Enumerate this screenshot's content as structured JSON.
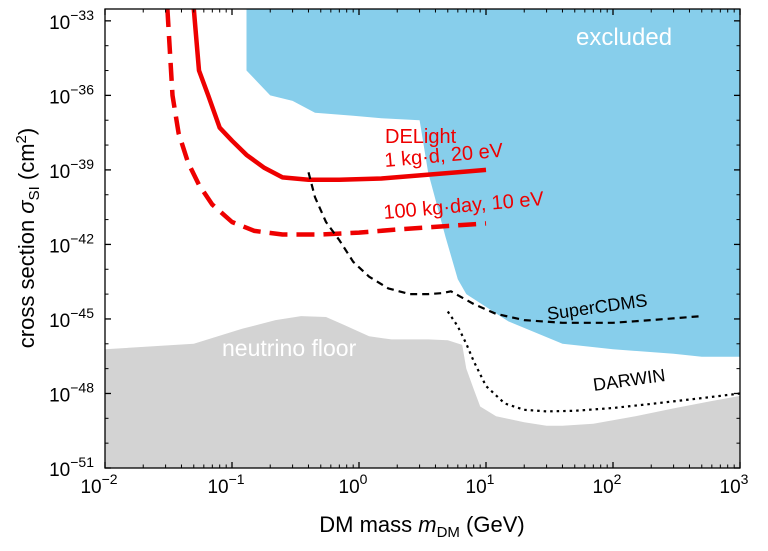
{
  "chart_data": {
    "type": "line",
    "xlabel": {
      "prefix": "DM mass ",
      "symbol": "m",
      "sub": "DM",
      "suffix": " (GeV)"
    },
    "ylabel": {
      "prefix": "cross section ",
      "symbol": "σ",
      "sub": "SI",
      "suffix_open": " (cm",
      "sup": "2",
      "suffix_close": ")"
    },
    "xscale": "log",
    "yscale": "log",
    "xlim": [
      0.01,
      1000
    ],
    "ylim": [
      1e-51,
      3e-33
    ],
    "grid": false,
    "x_ticks": [
      {
        "value": 0.01,
        "base": "10",
        "exp": "−2"
      },
      {
        "value": 0.1,
        "base": "10",
        "exp": "−1"
      },
      {
        "value": 1,
        "base": "10",
        "exp": "0"
      },
      {
        "value": 10,
        "base": "10",
        "exp": "1"
      },
      {
        "value": 100,
        "base": "10",
        "exp": "2"
      },
      {
        "value": 1000,
        "base": "10",
        "exp": "3"
      }
    ],
    "y_ticks": [
      {
        "value": 1e-33,
        "base": "10",
        "exp": "−33"
      },
      {
        "value": 1e-36,
        "base": "10",
        "exp": "−36"
      },
      {
        "value": 1e-39,
        "base": "10",
        "exp": "−39"
      },
      {
        "value": 1e-42,
        "base": "10",
        "exp": "−42"
      },
      {
        "value": 1e-45,
        "base": "10",
        "exp": "−45"
      },
      {
        "value": 1e-48,
        "base": "10",
        "exp": "−48"
      },
      {
        "value": 1e-51,
        "base": "10",
        "exp": "−51"
      }
    ],
    "regions": [
      {
        "name": "excluded",
        "label": "excluded",
        "color": "#87ceeb",
        "x": [
          0.13,
          0.13,
          0.2,
          0.3,
          0.45,
          0.9,
          1.5,
          3,
          3.5,
          4.8,
          6,
          7,
          15,
          40,
          100,
          300,
          500,
          1000,
          1000
        ],
        "y": [
          3e-33,
          1e-35,
          1e-36,
          6e-37,
          2e-37,
          1.5e-37,
          1.2e-37,
          1e-37,
          8e-40,
          2e-42,
          4e-44,
          1e-44,
          8e-46,
          1e-46,
          6e-47,
          4e-47,
          3e-47,
          3e-47,
          3e-33
        ]
      },
      {
        "name": "neutrino-floor",
        "label": "neutrino floor",
        "color": "#d3d3d3",
        "x": [
          0.01,
          0.05,
          0.12,
          0.22,
          0.35,
          0.55,
          0.75,
          1.2,
          1.8,
          3.5,
          5,
          6.5,
          7,
          8,
          9,
          12,
          20,
          30,
          40,
          70,
          150,
          300,
          600,
          1000
        ],
        "y": [
          6e-47,
          1e-46,
          4e-46,
          9e-46,
          1.3e-45,
          1.2e-45,
          6e-46,
          2e-46,
          1.5e-46,
          1.5e-46,
          1.4e-46,
          9e-47,
          1e-47,
          1.5e-48,
          3e-49,
          1.2e-49,
          7e-50,
          5e-50,
          5e-50,
          6e-50,
          1.2e-49,
          2.5e-49,
          5e-49,
          8e-49
        ]
      }
    ],
    "series": [
      {
        "name": "DELight 1 kg·d, 20 eV",
        "style": "solid",
        "color": "#ee0000",
        "x": [
          0.05,
          0.055,
          0.065,
          0.08,
          0.1,
          0.13,
          0.18,
          0.25,
          0.4,
          0.7,
          1.5,
          3,
          6,
          10
        ],
        "y": [
          3e-33,
          1e-35,
          1e-36,
          5e-38,
          1.5e-38,
          4e-39,
          1.2e-39,
          5e-40,
          4e-40,
          4e-40,
          4.5e-40,
          6e-40,
          8e-40,
          1e-39
        ]
      },
      {
        "name": "100 kg·day, 10 eV",
        "style": "dashed",
        "color": "#ee0000",
        "x": [
          0.031,
          0.034,
          0.038,
          0.045,
          0.055,
          0.07,
          0.1,
          0.15,
          0.25,
          0.5,
          1,
          2,
          5,
          10
        ],
        "y": [
          3e-33,
          1e-36,
          3e-38,
          2e-39,
          2.5e-40,
          4e-41,
          8e-42,
          3.5e-42,
          2.5e-42,
          2.5e-42,
          3e-42,
          4e-42,
          5.5e-42,
          7e-42
        ]
      },
      {
        "name": "SuperCDMS",
        "style": "dashed",
        "color": "#000000",
        "x": [
          0.4,
          0.45,
          0.55,
          0.7,
          0.9,
          1.2,
          1.7,
          2.5,
          3.5,
          4.5,
          5.3,
          6,
          8,
          12,
          20,
          40,
          100,
          200,
          500
        ],
        "y": [
          8e-40,
          8e-41,
          8e-42,
          1.5e-42,
          2e-43,
          5e-44,
          1.7e-44,
          1e-44,
          1e-44,
          1.1e-44,
          1.3e-44,
          9e-45,
          4e-45,
          1.6e-45,
          9e-46,
          7e-46,
          7e-46,
          9e-46,
          1.3e-45
        ]
      },
      {
        "name": "DARWIN",
        "style": "dotted",
        "color": "#000000",
        "x": [
          5,
          6,
          7,
          8,
          10,
          14,
          20,
          30,
          50,
          100,
          200,
          500,
          1000
        ],
        "y": [
          2e-45,
          5e-46,
          1e-46,
          2e-47,
          2e-48,
          4e-49,
          2.2e-49,
          1.9e-49,
          2e-49,
          2.6e-49,
          3.8e-49,
          6.5e-49,
          1e-48
        ]
      }
    ],
    "annotations": [
      {
        "name": "excluded",
        "text": "excluded",
        "color": "#ffffff"
      },
      {
        "name": "neutrino-floor",
        "text": "neutrino floor",
        "color": "#ffffff"
      },
      {
        "name": "delight-title",
        "text": "DELight",
        "color": "#ee0000"
      },
      {
        "name": "delight-solid",
        "text": "1 kg·d, 20 eV",
        "color": "#ee0000"
      },
      {
        "name": "delight-dashed",
        "text": "100 kg·day, 10 eV",
        "color": "#ee0000"
      },
      {
        "name": "supercdms",
        "text": "SuperCDMS",
        "color": "#000000"
      },
      {
        "name": "darwin",
        "text": "DARWIN",
        "color": "#000000"
      }
    ]
  }
}
